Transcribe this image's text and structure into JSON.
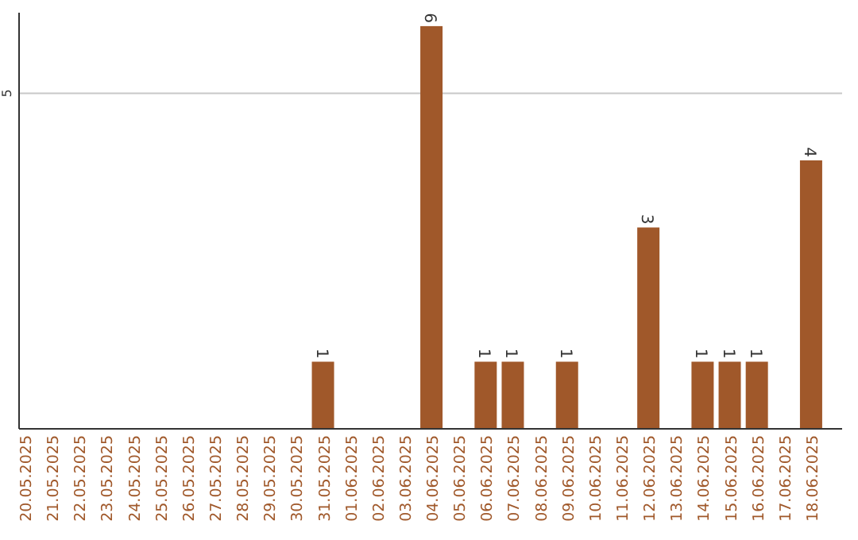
{
  "chart_data": {
    "type": "bar",
    "categories": [
      "20.05.2025",
      "21.05.2025",
      "22.05.2025",
      "23.05.2025",
      "24.05.2025",
      "25.05.2025",
      "26.05.2025",
      "27.05.2025",
      "28.05.2025",
      "29.05.2025",
      "30.05.2025",
      "31.05.2025",
      "01.06.2025",
      "02.06.2025",
      "03.06.2025",
      "04.06.2025",
      "05.06.2025",
      "06.06.2025",
      "07.06.2025",
      "08.06.2025",
      "09.06.2025",
      "10.06.2025",
      "11.06.2025",
      "12.06.2025",
      "13.06.2025",
      "14.06.2025",
      "15.06.2025",
      "16.06.2025",
      "17.06.2025",
      "18.06.2025"
    ],
    "values": [
      0,
      0,
      0,
      0,
      0,
      0,
      0,
      0,
      0,
      0,
      0,
      1,
      0,
      0,
      0,
      6,
      0,
      1,
      1,
      0,
      1,
      0,
      0,
      3,
      0,
      1,
      1,
      1,
      0,
      4
    ],
    "color": "#a0582a",
    "ylim": [
      0,
      6.2
    ],
    "yticks": [
      5
    ],
    "grid": "y",
    "value_labels": [
      null,
      null,
      null,
      null,
      null,
      null,
      null,
      null,
      null,
      null,
      null,
      "1",
      null,
      null,
      null,
      "6",
      null,
      "1",
      "1",
      null,
      "1",
      null,
      null,
      "3",
      null,
      "1",
      "1",
      "1",
      null,
      "4"
    ]
  }
}
